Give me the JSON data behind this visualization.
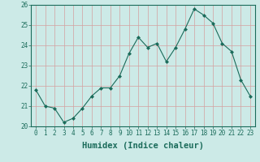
{
  "x": [
    0,
    1,
    2,
    3,
    4,
    5,
    6,
    7,
    8,
    9,
    10,
    11,
    12,
    13,
    14,
    15,
    16,
    17,
    18,
    19,
    20,
    21,
    22,
    23
  ],
  "y": [
    21.8,
    21.0,
    20.9,
    20.2,
    20.4,
    20.9,
    21.5,
    21.9,
    21.9,
    22.5,
    23.6,
    24.4,
    23.9,
    24.1,
    23.2,
    23.9,
    24.8,
    25.8,
    25.5,
    25.1,
    24.1,
    23.7,
    22.3,
    21.5
  ],
  "line_color": "#1a6b5a",
  "marker": "D",
  "marker_size": 2,
  "bg_color": "#cceae7",
  "grid_color": "#d4a0a0",
  "xlabel": "Humidex (Indice chaleur)",
  "ylim": [
    20,
    26
  ],
  "xlim": [
    -0.5,
    23.5
  ],
  "yticks": [
    20,
    21,
    22,
    23,
    24,
    25,
    26
  ],
  "xticks": [
    0,
    1,
    2,
    3,
    4,
    5,
    6,
    7,
    8,
    9,
    10,
    11,
    12,
    13,
    14,
    15,
    16,
    17,
    18,
    19,
    20,
    21,
    22,
    23
  ],
  "tick_fontsize": 5.5,
  "xlabel_fontsize": 7.5,
  "tick_color": "#1a6b5a",
  "xlabel_color": "#1a6b5a"
}
